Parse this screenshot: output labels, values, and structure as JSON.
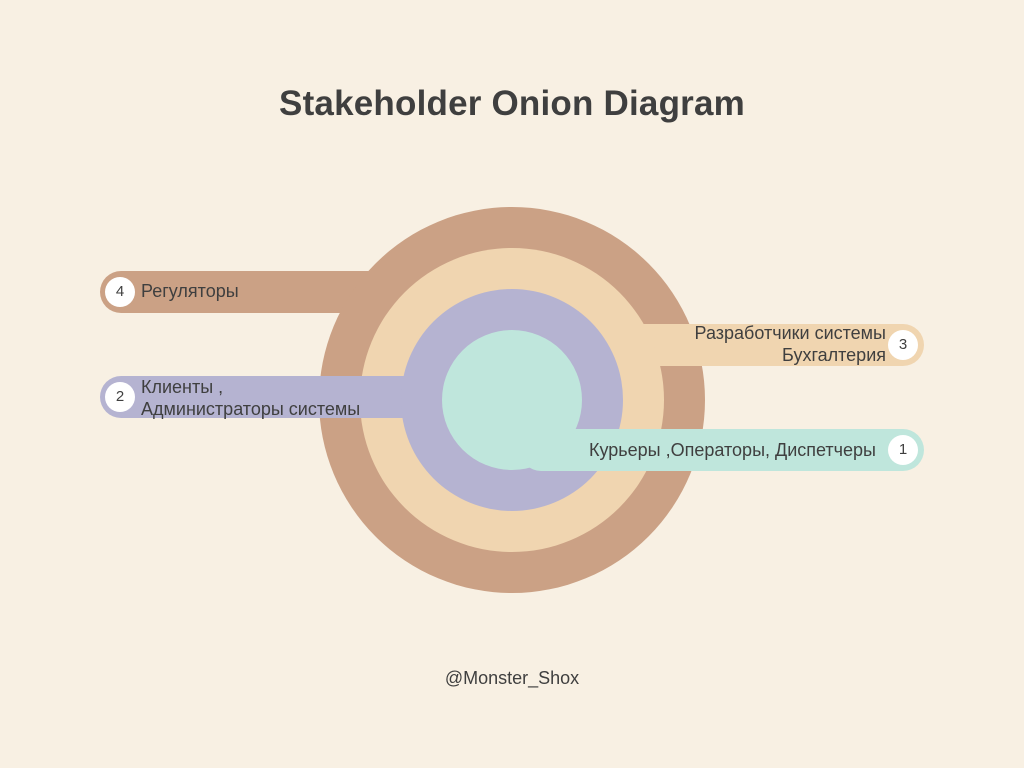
{
  "title": "Stakeholder Onion Diagram",
  "footer": "@Monster_Shox",
  "layers": [
    {
      "number": "1",
      "lines": [
        "Курьеры ,Операторы, Диспетчеры"
      ],
      "color": "#bfe6dc"
    },
    {
      "number": "2",
      "lines": [
        "Клиенты ,",
        "Администраторы системы"
      ],
      "color": "#b5b3d1"
    },
    {
      "number": "3",
      "lines": [
        "Разработчики системы",
        "Бухгалтерия"
      ],
      "color": "#f0d5b0"
    },
    {
      "number": "4",
      "lines": [
        "Регуляторы"
      ],
      "color": "#cba185"
    }
  ]
}
